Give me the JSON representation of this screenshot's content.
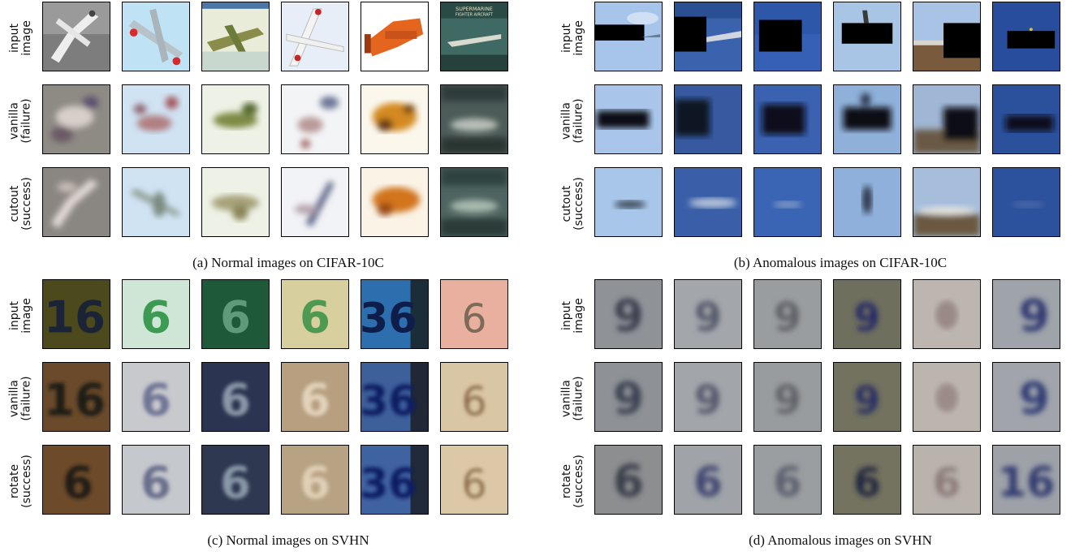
{
  "panels": {
    "a": {
      "caption": "(a) Normal images on CIFAR-10C",
      "rows": [
        {
          "label_line1": "input",
          "label_line2": "image"
        },
        {
          "label_line1": "vanilla",
          "label_line2": "(failure)"
        },
        {
          "label_line1": "cutout",
          "label_line2": "(success)"
        }
      ],
      "tile_text": {
        "book_cover": "SUPERMARINE FIGHTER AIRCRAFT"
      }
    },
    "b": {
      "caption": "(b) Anomalous images on CIFAR-10C",
      "rows": [
        {
          "label_line1": "input",
          "label_line2": "image"
        },
        {
          "label_line1": "vanilla",
          "label_line2": "(failure)"
        },
        {
          "label_line1": "cutout",
          "label_line2": "(success)"
        }
      ]
    },
    "c": {
      "caption": "(c) Normal images on SVHN",
      "rows": [
        {
          "label_line1": "input",
          "label_line2": "image"
        },
        {
          "label_line1": "vanilla",
          "label_line2": "(failure)"
        },
        {
          "label_line1": "rotate",
          "label_line2": "(success)"
        }
      ],
      "digits": {
        "input": [
          "16",
          "6",
          "6",
          "6",
          "36",
          "6"
        ],
        "vanilla": [
          "16",
          "6",
          "6",
          "6",
          "36",
          "6"
        ],
        "rotate": [
          "6",
          "6",
          "6",
          "6",
          "36",
          "6"
        ]
      }
    },
    "d": {
      "caption": "(d) Anomalous images on SVHN",
      "rows": [
        {
          "label_line1": "input",
          "label_line2": "image"
        },
        {
          "label_line1": "vanilla",
          "label_line2": "(failure)"
        },
        {
          "label_line1": "rotate",
          "label_line2": "(success)"
        }
      ],
      "digits": {
        "input": [
          "9",
          "9",
          "9",
          "9",
          "",
          "9"
        ],
        "vanilla": [
          "9",
          "9",
          "9",
          "9",
          "",
          "9"
        ],
        "rotate": [
          "6",
          "6",
          "6",
          "6",
          "6",
          "16"
        ]
      }
    }
  },
  "colors": {
    "border": "#000000",
    "sky_blue": "#a9c8ec",
    "deep_blue": "#2a4f9a",
    "orange": "#e4651e",
    "olive": "#4c4a1c",
    "svhn_gray": "#9a9da0"
  }
}
